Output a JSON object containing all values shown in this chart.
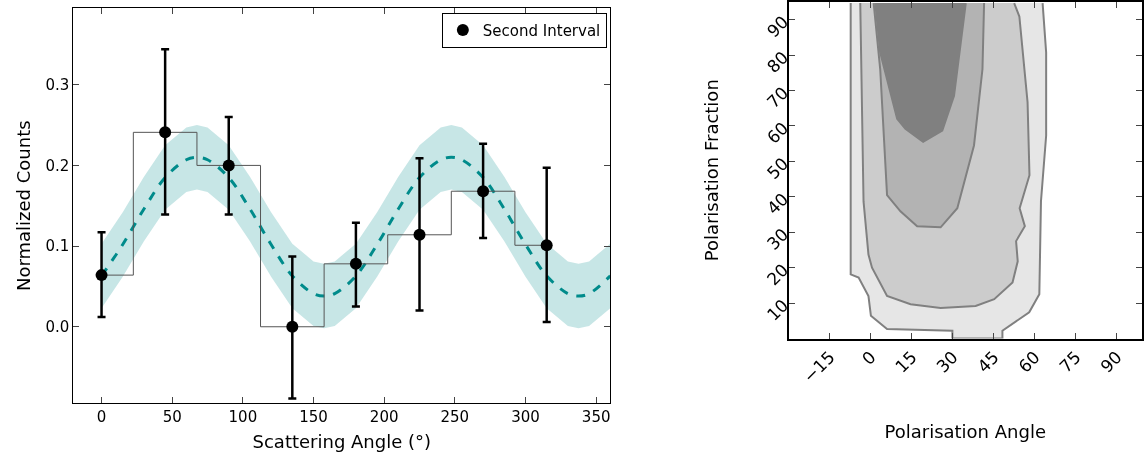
{
  "chart_data": [
    {
      "type": "scatter",
      "xlabel": "Scattering Angle (°)",
      "ylabel": "Normalized Counts",
      "xlim": [
        -20,
        360
      ],
      "xticks": [
        0,
        50,
        100,
        150,
        200,
        250,
        300,
        350
      ],
      "ylim": [
        -0.095,
        0.395
      ],
      "yticks": [
        {
          "value": 0,
          "label": "0.0"
        },
        {
          "value": 0.1,
          "label": "0.1"
        },
        {
          "value": 0.2,
          "label": "0.2"
        },
        {
          "value": 0.3,
          "label": "0.3"
        }
      ],
      "legend": "top right",
      "series": [
        {
          "type": "line",
          "line_style": "dashed",
          "color": "#008b8b",
          "x": [
            0,
            15,
            30,
            45,
            60,
            67.5,
            75,
            90,
            105,
            120,
            135,
            150,
            157.5,
            165,
            180,
            195,
            210,
            225,
            240,
            247.5,
            255,
            270,
            285,
            300,
            315,
            330,
            337.5,
            345,
            360
          ],
          "values": [
            0.063,
            0.102,
            0.146,
            0.185,
            0.207,
            0.21,
            0.207,
            0.185,
            0.146,
            0.102,
            0.063,
            0.041,
            0.038,
            0.041,
            0.063,
            0.102,
            0.146,
            0.185,
            0.207,
            0.21,
            0.207,
            0.185,
            0.146,
            0.102,
            0.063,
            0.041,
            0.038,
            0.041,
            0.063
          ],
          "lower": [
            0.023,
            0.062,
            0.106,
            0.145,
            0.167,
            0.17,
            0.167,
            0.145,
            0.106,
            0.062,
            0.023,
            0.001,
            -0.002,
            0.001,
            0.023,
            0.062,
            0.106,
            0.145,
            0.167,
            0.17,
            0.167,
            0.145,
            0.106,
            0.062,
            0.023,
            0.001,
            -0.002,
            0.001,
            0.023
          ],
          "upper": [
            0.103,
            0.142,
            0.186,
            0.225,
            0.247,
            0.25,
            0.247,
            0.225,
            0.186,
            0.142,
            0.103,
            0.081,
            0.078,
            0.081,
            0.103,
            0.142,
            0.186,
            0.225,
            0.247,
            0.25,
            0.247,
            0.225,
            0.186,
            0.142,
            0.103,
            0.081,
            0.078,
            0.081,
            0.103
          ]
        },
        {
          "type": "step",
          "color": "#555555",
          "x": [
            0,
            45,
            90,
            135,
            180,
            225,
            270,
            315
          ],
          "values": [
            0.064,
            0.241,
            0.2,
            0,
            0.078,
            0.114,
            0.168,
            0.101
          ]
        },
        {
          "type": "scatter",
          "name": "Second Interval",
          "marker": "circle",
          "color": "#000000",
          "x": [
            0,
            45,
            90,
            135,
            180,
            225,
            270,
            315
          ],
          "values": [
            0.064,
            0.241,
            0.2,
            0,
            0.078,
            0.114,
            0.168,
            0.101
          ],
          "errors": [
            [
              0.012,
              0.117
            ],
            [
              0.139,
              0.344
            ],
            [
              0.139,
              0.26
            ],
            [
              -0.089,
              0.087
            ],
            [
              0.025,
              0.129
            ],
            [
              0.02,
              0.209
            ],
            [
              0.11,
              0.227
            ],
            [
              0.006,
              0.197
            ]
          ]
        }
      ]
    },
    {
      "type": "area",
      "xlabel": "Polarisation Angle",
      "ylabel": "Polarisation Fraction",
      "xlim": [
        -30,
        99
      ],
      "xticks": [
        {
          "value": -15,
          "label": "−15"
        },
        0,
        15,
        30,
        45,
        60,
        75,
        90
      ],
      "ylim": [
        0,
        95
      ],
      "yticks": [
        10,
        20,
        30,
        40,
        50,
        60,
        70,
        80,
        90
      ],
      "series": [
        {
          "color": "#e6e6e6",
          "x": [
            -7.4,
            -7.4,
            -4.5,
            -0.9,
            0,
            5.9,
            29.8,
            29.8,
            48.1,
            48.1,
            57.9,
            61.6,
            62.2,
            64.1,
            64.1,
            62.8
          ],
          "values": [
            94.7,
            18.1,
            17.2,
            12,
            6.4,
            2.7,
            2.2,
            0,
            0,
            2.2,
            7.4,
            12.5,
            38.7,
            57.3,
            80.7,
            94.7
          ]
        },
        {
          "color": "#cccccc",
          "x": [
            -3.9,
            -2.7,
            -0.9,
            0.4,
            5.9,
            14.5,
            25.5,
            38.3,
            45.1,
            51.8,
            53.7,
            53.1,
            56.3,
            54.4,
            58,
            57.3,
            54.3,
            52.4
          ],
          "values": [
            94.7,
            38.7,
            23.7,
            20,
            12,
            9.7,
            8.6,
            9.2,
            11.1,
            15.8,
            21.8,
            27.5,
            31.7,
            36.8,
            46.1,
            66.7,
            90.9,
            94.7
          ]
        },
        {
          "color": "#b3b3b3",
          "x": [
            1,
            3.4,
            5.9,
            10.8,
            16.9,
            25.5,
            31.6,
            37.7,
            40.8,
            41.4
          ],
          "values": [
            94.7,
            76,
            40.5,
            35.9,
            31.7,
            31.4,
            36.8,
            54.5,
            76,
            94.7
          ]
        },
        {
          "color": "#808080",
          "x": [
            1.6,
            3.4,
            9.6,
            12.6,
            19.1,
            26.1,
            30.4,
            34.7
          ],
          "values": [
            94.7,
            80.7,
            62,
            59.2,
            55.5,
            58.7,
            68.5,
            94.7
          ]
        }
      ]
    }
  ]
}
